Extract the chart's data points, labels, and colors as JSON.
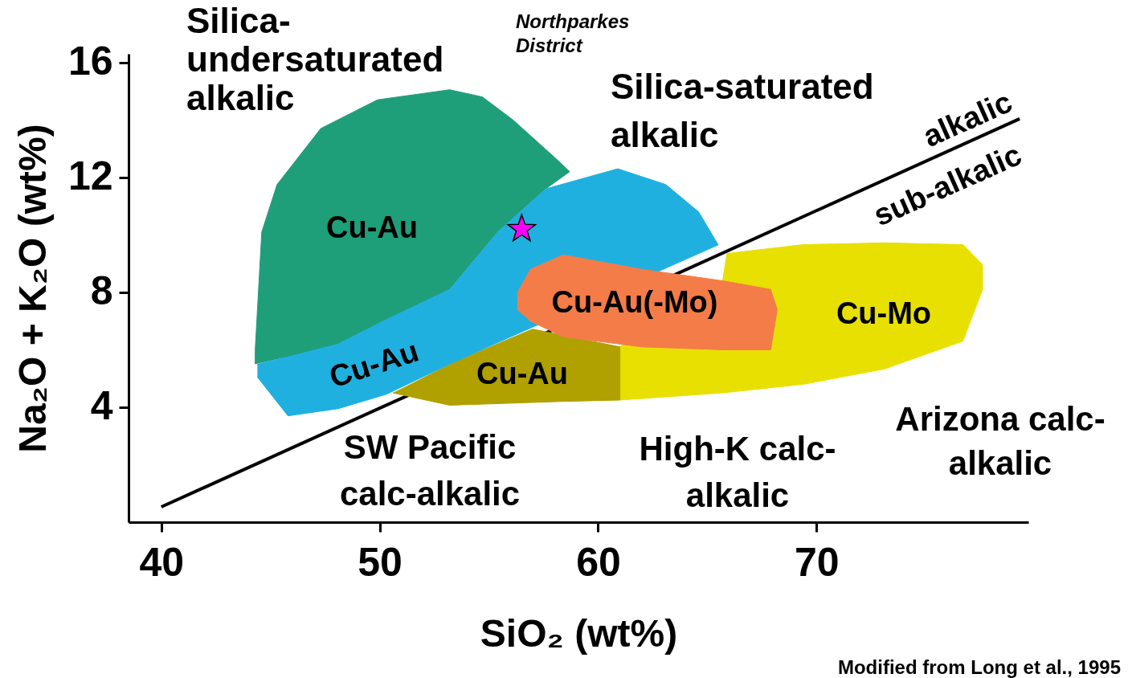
{
  "chart_data": {
    "type": "area",
    "xlabel": "SiO₂ (wt%)",
    "ylabel": "Na₂O + K₂O (wt%)",
    "xlim": [
      38.5,
      79.7
    ],
    "ylim": [
      0,
      16.3
    ],
    "xticks": [
      40,
      50,
      60,
      70
    ],
    "yticks": [
      4,
      8,
      12,
      16
    ],
    "grid": false,
    "series": [
      {
        "type": "line",
        "color": "#000000",
        "x": [
          40,
          79.3
        ],
        "values": [
          0.53,
          14.04
        ]
      },
      {
        "color": "#1f9e7a",
        "x": [
          44.3,
          44.3,
          44.6,
          45.3,
          47.3,
          49.9,
          53.2,
          54.7,
          56.1,
          58.0,
          58.7,
          57.6,
          55.4,
          53.2,
          50.3,
          48.1,
          45.8
        ],
        "values": [
          5.5,
          6.0,
          10.1,
          11.75,
          13.7,
          14.7,
          15.05,
          14.8,
          14.0,
          12.7,
          12.2,
          11.6,
          10.1,
          8.1,
          7.05,
          6.2,
          5.75
        ]
      },
      {
        "color": "#e8e000",
        "x": [
          61.0,
          65.7,
          69.4,
          73.1,
          76.7,
          77.6,
          77.6,
          76.7,
          73.1,
          69.4,
          65.9,
          65.7,
          61.0
        ],
        "values": [
          4.25,
          4.5,
          4.8,
          5.33,
          6.3,
          8.1,
          8.96,
          9.66,
          9.72,
          9.66,
          9.35,
          8.4,
          6.1
        ]
      },
      {
        "color": "#b0a000",
        "x": [
          50.6,
          53.2,
          58.3,
          61.0,
          61.0,
          57.0,
          53.2
        ],
        "values": [
          4.5,
          4.07,
          4.2,
          4.25,
          6.1,
          6.72,
          5.5
        ]
      },
      {
        "color": "#20b0e0",
        "x": [
          44.4,
          45.8,
          48.1,
          50.3,
          53.2,
          55.4,
          57.6,
          60.9,
          63.1,
          64.6,
          65.5,
          56.0,
          53.2,
          50.3,
          48.1,
          45.8,
          44.4
        ],
        "values": [
          5.5,
          5.75,
          6.2,
          7.05,
          8.1,
          10.1,
          11.6,
          12.3,
          11.75,
          10.8,
          9.65,
          6.45,
          5.5,
          4.45,
          3.95,
          3.7,
          5.05
        ]
      },
      {
        "color": "#f47c48",
        "x": [
          56.3,
          56.9,
          58.4,
          62.0,
          65.7,
          67.9,
          68.2,
          67.9,
          65.7,
          62.0,
          58.4,
          56.9,
          56.3
        ],
        "values": [
          7.98,
          8.8,
          9.3,
          8.8,
          8.4,
          8.1,
          7.4,
          6.0,
          6.0,
          6.1,
          6.45,
          7.0,
          7.4
        ]
      },
      {
        "type": "scatter",
        "color": "#ff00ff",
        "marker": "star",
        "x": [
          56.5
        ],
        "values": [
          10.2
        ]
      }
    ],
    "annotations": [
      "Silica-\nundersaturated\nalkalic",
      "Northparkes\nDistrict",
      "Silica-saturated\nalkalic",
      "alkalic",
      "sub-alkalic",
      "Cu-Au",
      "Cu-Au",
      "Cu-Au",
      "Cu-Au(-Mo)",
      "Cu-Mo",
      "SW Pacific\ncalc-alkalic",
      "High-K calc-\nalkalic",
      "Arizona calc-\nalkalic",
      "Modified from Long et al., 1995"
    ]
  }
}
